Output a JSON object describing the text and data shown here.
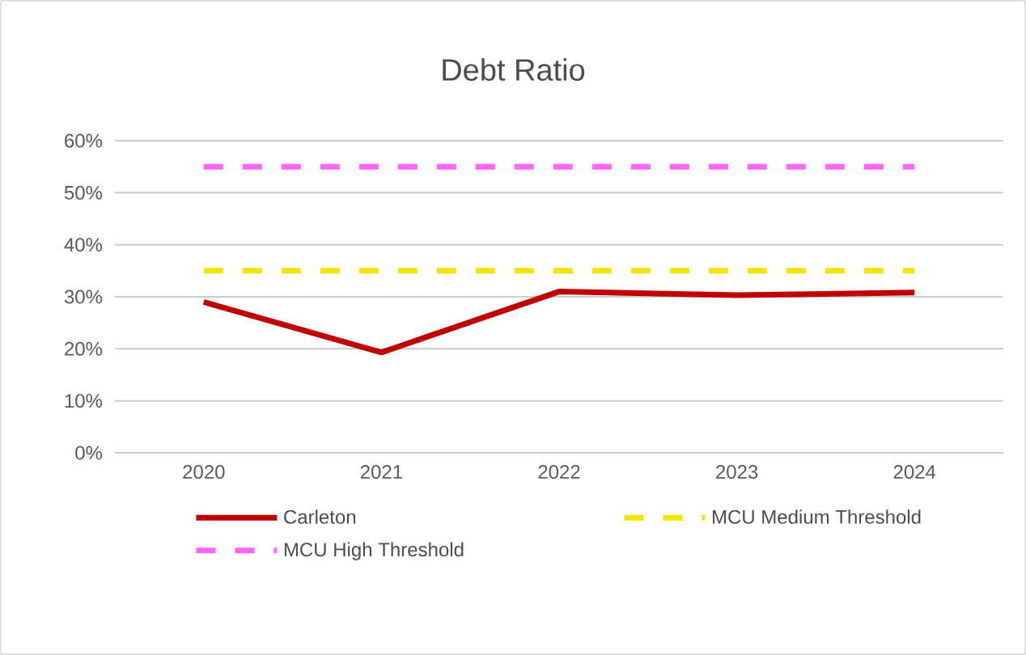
{
  "chart_data": {
    "type": "line",
    "title": "Debt Ratio",
    "categories": [
      "2020",
      "2021",
      "2022",
      "2023",
      "2024"
    ],
    "series": [
      {
        "name": "Carleton",
        "color": "#c00000",
        "line_style": "solid",
        "values": [
          29,
          19.3,
          31,
          30.3,
          30.8
        ]
      },
      {
        "name": "MCU Medium Threshold",
        "color": "#f2e600",
        "line_style": "dashed",
        "values": [
          35,
          35,
          35,
          35,
          35
        ]
      },
      {
        "name": "MCU High Threshold",
        "color": "#ff66ff",
        "line_style": "dashed",
        "values": [
          55,
          55,
          55,
          55,
          55
        ]
      }
    ],
    "ylim": [
      0,
      60
    ],
    "yticks": [
      {
        "value": 0,
        "label": "0%"
      },
      {
        "value": 10,
        "label": "10%"
      },
      {
        "value": 20,
        "label": "20%"
      },
      {
        "value": 30,
        "label": "30%"
      },
      {
        "value": 40,
        "label": "40%"
      },
      {
        "value": 50,
        "label": "50%"
      },
      {
        "value": 60,
        "label": "60%"
      }
    ],
    "grid": "y",
    "legend": "bottom"
  }
}
